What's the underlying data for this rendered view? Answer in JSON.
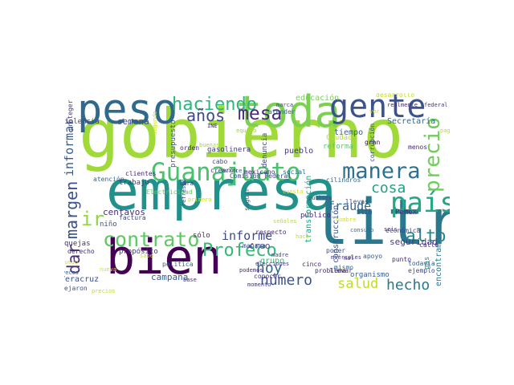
{
  "words": [
    {
      "t": "gobierno",
      "c": "#a0da39"
    },
    {
      "t": "empresa",
      "c": "#21918c"
    },
    {
      "t": "bien",
      "c": "#440154"
    },
    {
      "t": "litro",
      "c": "#2a788e"
    },
    {
      "t": "peso",
      "c": "#31688e"
    },
    {
      "t": "toda",
      "c": "#7ad151"
    },
    {
      "t": "gente",
      "c": "#3b528b"
    },
    {
      "t": "Guanajuato",
      "c": "#4ac16d"
    },
    {
      "t": "país",
      "c": "#22a884"
    },
    {
      "t": "manera",
      "c": "#2c728e"
    },
    {
      "t": "precio",
      "c": "#6ece58"
    },
    {
      "t": "contrato",
      "c": "#5ec962"
    },
    {
      "t": "haciendo",
      "c": "#2fb47c"
    },
    {
      "t": "mesa",
      "c": "#482878"
    },
    {
      "t": "años",
      "c": "#3e4989"
    },
    {
      "t": "Profeco",
      "c": "#35b779"
    },
    {
      "t": "alto",
      "c": "#26828e"
    },
    {
      "t": "cosa",
      "c": "#1fa088"
    },
    {
      "t": "margen",
      "c": "#3b528b"
    },
    {
      "t": "ir",
      "c": "#8fd744"
    },
    {
      "t": "dar",
      "c": "#472c7a"
    },
    {
      "t": "informar",
      "c": "#365c8d"
    },
    {
      "t": "hoy",
      "c": "#31688e"
    },
    {
      "t": "informe",
      "c": "#3e4989"
    },
    {
      "t": "fraude",
      "c": "#31688e"
    },
    {
      "t": "número",
      "c": "#3b528b"
    },
    {
      "t": "salud",
      "c": "#bddf26"
    },
    {
      "t": "hecho",
      "c": "#2a788e"
    },
    {
      "t": "seguridad",
      "c": "#443983"
    },
    {
      "t": "semana",
      "c": "#3e4989"
    },
    {
      "t": "Secretaría",
      "c": "#31688e"
    },
    {
      "t": "centavos",
      "c": "#472c7a"
    },
    {
      "t": "trabajo",
      "c": "#443983"
    },
    {
      "t": "campaña",
      "c": "#365c8d"
    },
    {
      "t": "creo",
      "c": "#3b528b"
    },
    {
      "t": "sólo",
      "c": "#482878"
    },
    {
      "t": "grupo",
      "c": "#35b779"
    },
    {
      "t": "encontramos",
      "c": "#2a788e"
    },
    {
      "t": "presupuesto",
      "c": "#365c8d"
    },
    {
      "t": "denuncia",
      "c": "#3e4989"
    },
    {
      "t": "pueblo",
      "c": "#443983"
    },
    {
      "t": "tiempo",
      "c": "#365c8d"
    },
    {
      "t": "público",
      "c": "#482878"
    },
    {
      "t": "construcción",
      "c": "#3b528b"
    },
    {
      "t": "transformación",
      "c": "#1fa088"
    },
    {
      "t": "Pemex",
      "c": "#472c7a"
    },
    {
      "t": "niño",
      "c": "#3b528b"
    },
    {
      "t": "Comisión Federal",
      "c": "#3e4989"
    },
    {
      "t": "Electricidad",
      "c": "#5ec962"
    },
    {
      "t": "crearon",
      "c": "#443983"
    },
    {
      "t": "mexicano",
      "c": "#482878"
    },
    {
      "t": "social",
      "c": "#31688e"
    },
    {
      "t": "Veracruz",
      "c": "#3b528b"
    },
    {
      "t": "quejas",
      "c": "#472c7a"
    },
    {
      "t": "propósito",
      "c": "#443983"
    },
    {
      "t": "derecho",
      "c": "#482878"
    },
    {
      "t": "factura",
      "c": "#3e4989"
    },
    {
      "t": "educación",
      "c": "#7ad151"
    },
    {
      "t": "violencia",
      "c": "#3e4989"
    },
    {
      "t": "atención",
      "c": "#31688e"
    },
    {
      "t": "clientes",
      "c": "#482878"
    },
    {
      "t": "organismo",
      "c": "#365c8d"
    },
    {
      "t": "económica",
      "c": "#3e4989"
    },
    {
      "t": "calle",
      "c": "#482878"
    },
    {
      "t": "gasolinera",
      "c": "#443983"
    },
    {
      "t": "Slim",
      "c": "#3b528b"
    },
    {
      "t": "cinco",
      "c": "#482878"
    },
    {
      "t": "mismo",
      "c": "#31688e"
    },
    {
      "t": "punto",
      "c": "#472c7a"
    },
    {
      "t": "gas",
      "c": "#1f9e89"
    },
    {
      "t": "mañana",
      "c": "#3e4989"
    },
    {
      "t": "conocer",
      "c": "#443983"
    },
    {
      "t": "respecto",
      "c": "#482878"
    },
    {
      "t": "cilindros",
      "c": "#31688e"
    },
    {
      "t": "Ciudad",
      "c": "#b5de2b"
    },
    {
      "t": "reforma",
      "c": "#5ec962"
    },
    {
      "t": "gran",
      "c": "#440154"
    },
    {
      "t": "corrupción",
      "c": "#3b528b"
    },
    {
      "t": "menos",
      "c": "#472c7a"
    },
    {
      "t": "todavía",
      "c": "#365c8d"
    },
    {
      "t": "ejemplo",
      "c": "#3e4989"
    },
    {
      "t": "problema",
      "c": "#482878"
    },
    {
      "t": "elecciones",
      "c": "#443983"
    },
    {
      "t": "poder",
      "c": "#3b528b"
    },
    {
      "t": "llevar",
      "c": "#472c7a"
    },
    {
      "t": "apoyo",
      "c": "#365c8d"
    },
    {
      "t": "seis",
      "c": "#482878"
    },
    {
      "t": "consumo",
      "c": "#31688e"
    },
    {
      "t": "llevas",
      "c": "#3e4989"
    },
    {
      "t": "desarrollo",
      "c": "#bddf26"
    },
    {
      "t": "realmente",
      "c": "#482878"
    },
    {
      "t": "federal",
      "c": "#443983"
    },
    {
      "t": "marca",
      "c": "#3e4989"
    },
    {
      "t": "atender",
      "c": "#31688e"
    },
    {
      "t": "INE",
      "c": "#472c7a"
    },
    {
      "t": "orden",
      "c": "#482878"
    },
    {
      "t": "cabo",
      "c": "#3b528b"
    },
    {
      "t": "avance",
      "c": "#31688e"
    },
    {
      "t": "equipo",
      "c": "#a0da39"
    },
    {
      "t": "proteger",
      "c": "#443983"
    },
    {
      "t": "segundo",
      "c": "#c8e020"
    },
    {
      "t": "cara",
      "c": "#482878"
    },
    {
      "t": "refresco",
      "c": "#3e4989"
    },
    {
      "t": "política",
      "c": "#365c8d"
    },
    {
      "t": "base",
      "c": "#472c7a"
    },
    {
      "t": "dejaron",
      "c": "#3b528b"
    },
    {
      "t": "veces",
      "c": "#31688e"
    },
    {
      "t": "momento",
      "c": "#443983"
    },
    {
      "t": "podemos",
      "c": "#482878"
    },
    {
      "t": "madre",
      "c": "#3e4989"
    },
    {
      "t": "seguir",
      "c": "#31688e"
    },
    {
      "t": "miércoles",
      "c": "#443983"
    },
    {
      "t": "mal",
      "c": "#482878"
    },
    {
      "t": "pública",
      "c": "#3b528b"
    },
    {
      "t": "buenas",
      "c": "#a0da39"
    },
    {
      "t": "hombre",
      "c": "#d8e219"
    },
    {
      "t": "señales",
      "c": "#b5de2b"
    },
    {
      "t": "sabe",
      "c": "#c8e020"
    },
    {
      "t": "puedo",
      "c": "#d8e219"
    },
    {
      "t": "precios",
      "c": "#bddf26"
    },
    {
      "t": "pagar",
      "c": "#b5de2b"
    },
    {
      "t": "cuesta",
      "c": "#d8e219"
    },
    {
      "t": "ver",
      "c": "#c8e020"
    },
    {
      "t": "hace",
      "c": "#bddf26"
    },
    {
      "t": "nueva",
      "c": "#d8e219"
    },
    {
      "t": "primero",
      "c": "#c8e020"
    },
    {
      "t": "ley",
      "c": "#bddf26"
    },
    {
      "t": "ahí",
      "c": "#d8e219"
    }
  ]
}
